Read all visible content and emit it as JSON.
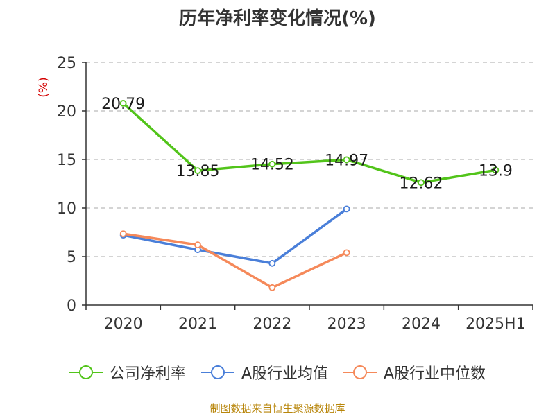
{
  "chart_data": {
    "type": "line",
    "title": "历年净利率变化情况(%)",
    "ylabel": "(%)",
    "categories": [
      "2020",
      "2021",
      "2022",
      "2023",
      "2024",
      "2025H1"
    ],
    "ylim": [
      0,
      25
    ],
    "yticks": [
      0,
      5,
      10,
      15,
      20,
      25
    ],
    "grid": true,
    "legend_position": "bottom",
    "series": [
      {
        "name": "公司净利率",
        "color": "#52c41a",
        "values": [
          20.79,
          13.85,
          14.52,
          14.97,
          12.62,
          13.9
        ],
        "labels": [
          "20.79",
          "13.85",
          "14.52",
          "14.97",
          "12.62",
          "13.9"
        ]
      },
      {
        "name": "A股行业均值",
        "color": "#4a7fd9",
        "values": [
          7.2,
          5.7,
          4.3,
          9.9,
          null,
          null
        ]
      },
      {
        "name": "A股行业中位数",
        "color": "#f5895a",
        "values": [
          7.35,
          6.2,
          1.8,
          5.4,
          null,
          null
        ]
      }
    ]
  },
  "footer": {
    "source": "制图数据来自恒生聚源数据库"
  }
}
